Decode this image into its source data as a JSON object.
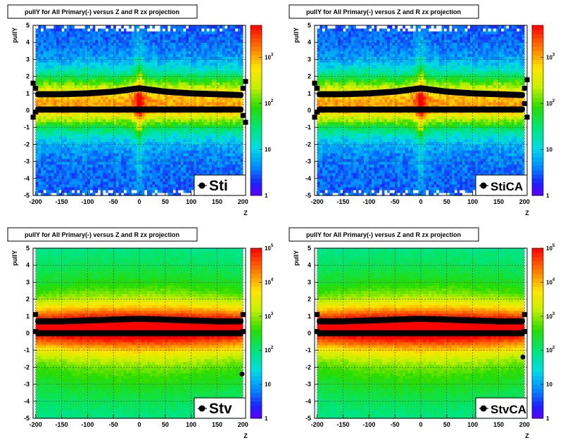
{
  "panels": [
    {
      "title": "pullY for All Primary(-) versus Z and R zx projection",
      "legend": "Sti",
      "ylabel": "pullY",
      "xlabel": "Z",
      "xticks": [
        -200,
        -150,
        -100,
        -50,
        0,
        50,
        100,
        150,
        200
      ],
      "yticks": [
        -5,
        -4,
        -3,
        -2,
        -1,
        0,
        1,
        2,
        3,
        4,
        5
      ],
      "zticks": [
        "1",
        "10",
        "10^2",
        "10^3"
      ],
      "style": "blue"
    },
    {
      "title": "pullY for All Primary(-) versus Z and R zx projection",
      "legend": "StiCA",
      "ylabel": "pullY",
      "xlabel": "Z",
      "xticks": [
        -200,
        -150,
        -100,
        -50,
        0,
        50,
        100,
        150,
        200
      ],
      "yticks": [
        -5,
        -4,
        -3,
        -2,
        -1,
        0,
        1,
        2,
        3,
        4,
        5
      ],
      "zticks": [
        "1",
        "10",
        "10^2",
        "10^3"
      ],
      "style": "blue"
    },
    {
      "title": "pullY for All Primary(-) versus Z and R zx projection",
      "legend": "Stv",
      "ylabel": "pullY",
      "xlabel": "Z",
      "xticks": [
        -200,
        -150,
        -100,
        -50,
        0,
        50,
        100,
        150,
        200
      ],
      "yticks": [
        -5,
        -4,
        -3,
        -2,
        -1,
        0,
        1,
        2,
        3,
        4,
        5
      ],
      "zticks": [
        "1",
        "10",
        "10^2",
        "10^3",
        "10^4",
        "10^5"
      ],
      "style": "green"
    },
    {
      "title": "pullY for All Primary(-) versus Z and R zx projection",
      "legend": "StvCA",
      "ylabel": "pullY",
      "xlabel": "Z",
      "xticks": [
        -200,
        -150,
        -100,
        -50,
        0,
        50,
        100,
        150,
        200
      ],
      "yticks": [
        -5,
        -4,
        -3,
        -2,
        -1,
        0,
        1,
        2,
        3,
        4,
        5
      ],
      "zticks": [
        "1",
        "10",
        "10^2",
        "10^3",
        "10^4",
        "10^5"
      ],
      "style": "green"
    }
  ],
  "chart_data": [
    {
      "type": "heatmap",
      "title": "pullY for All Primary(-) versus Z and R zx projection",
      "xlabel": "Z",
      "ylabel": "pullY",
      "xlim": [
        -205,
        205
      ],
      "ylim": [
        -5,
        5
      ],
      "zscale": "log",
      "zlim": [
        1,
        5000
      ],
      "legend": "Sti",
      "series": [
        {
          "name": "Sti",
          "x": [
            -205,
            -200,
            -195,
            -150,
            -100,
            -50,
            0,
            50,
            100,
            150,
            195,
            200,
            205
          ],
          "y": [
            -0.4,
            -0.1,
            0.05,
            0.05,
            0.05,
            0.05,
            0.05,
            0.05,
            0.05,
            0.05,
            0.05,
            -0.3,
            -0.7
          ]
        },
        {
          "name": "Sti",
          "x": [
            -205,
            -200,
            -195,
            -150,
            -100,
            -50,
            0,
            50,
            100,
            150,
            195,
            200,
            205
          ],
          "y": [
            1.6,
            1.3,
            0.95,
            0.95,
            1.0,
            1.1,
            1.3,
            1.1,
            1.0,
            0.95,
            0.9,
            1.3,
            1.7
          ]
        }
      ]
    },
    {
      "type": "heatmap",
      "title": "pullY for All Primary(-) versus Z and R zx projection",
      "xlabel": "Z",
      "ylabel": "pullY",
      "xlim": [
        -205,
        205
      ],
      "ylim": [
        -5,
        5
      ],
      "zscale": "log",
      "zlim": [
        1,
        5000
      ],
      "legend": "StiCA",
      "series": [
        {
          "name": "StiCA",
          "x": [
            -205,
            -200,
            -195,
            -150,
            -100,
            -50,
            0,
            50,
            100,
            150,
            195,
            200,
            205
          ],
          "y": [
            -0.4,
            -0.1,
            0.05,
            0.05,
            0.05,
            0.05,
            0.05,
            0.05,
            0.05,
            0.05,
            0.05,
            0.4,
            -0.4
          ]
        },
        {
          "name": "StiCA",
          "x": [
            -205,
            -200,
            -195,
            -150,
            -100,
            -50,
            0,
            50,
            100,
            150,
            195,
            200,
            205
          ],
          "y": [
            1.6,
            1.3,
            0.95,
            0.95,
            1.0,
            1.1,
            1.3,
            1.1,
            1.0,
            0.95,
            0.9,
            1.3,
            1.8
          ]
        }
      ]
    },
    {
      "type": "heatmap",
      "title": "pullY for All Primary(-) versus Z and R zx projection",
      "xlabel": "Z",
      "ylabel": "pullY",
      "xlim": [
        -205,
        205
      ],
      "ylim": [
        -5,
        5
      ],
      "zscale": "log",
      "zlim": [
        1,
        100000
      ],
      "legend": "Stv",
      "series": [
        {
          "name": "Stv",
          "x": [
            -200,
            -195,
            -150,
            -100,
            -50,
            0,
            50,
            100,
            150,
            195,
            200
          ],
          "y": [
            0.1,
            0.0,
            0.0,
            0.0,
            0.0,
            0.0,
            0.0,
            0.0,
            0.0,
            0.0,
            0.1
          ]
        },
        {
          "name": "Stv",
          "x": [
            -200,
            -195,
            -150,
            -100,
            -50,
            0,
            50,
            100,
            150,
            195,
            200
          ],
          "y": [
            1.1,
            0.7,
            0.7,
            0.75,
            0.8,
            0.85,
            0.8,
            0.75,
            0.7,
            0.7,
            1.1
          ]
        }
      ]
    },
    {
      "type": "heatmap",
      "title": "pullY for All Primary(-) versus Z and R zx projection",
      "xlabel": "Z",
      "ylabel": "pullY",
      "xlim": [
        -205,
        205
      ],
      "ylim": [
        -5,
        5
      ],
      "zscale": "log",
      "zlim": [
        1,
        100000
      ],
      "legend": "StvCA",
      "series": [
        {
          "name": "StvCA",
          "x": [
            -200,
            -195,
            -150,
            -100,
            -50,
            0,
            50,
            100,
            150,
            195,
            200
          ],
          "y": [
            0.1,
            0.0,
            0.0,
            0.0,
            0.0,
            0.0,
            0.0,
            0.0,
            0.0,
            0.0,
            0.1
          ]
        },
        {
          "name": "StvCA",
          "x": [
            -200,
            -195,
            -150,
            -100,
            -50,
            0,
            50,
            100,
            150,
            195,
            200
          ],
          "y": [
            1.1,
            0.7,
            0.7,
            0.75,
            0.8,
            0.85,
            0.8,
            0.75,
            0.7,
            0.7,
            1.1
          ]
        }
      ]
    }
  ]
}
